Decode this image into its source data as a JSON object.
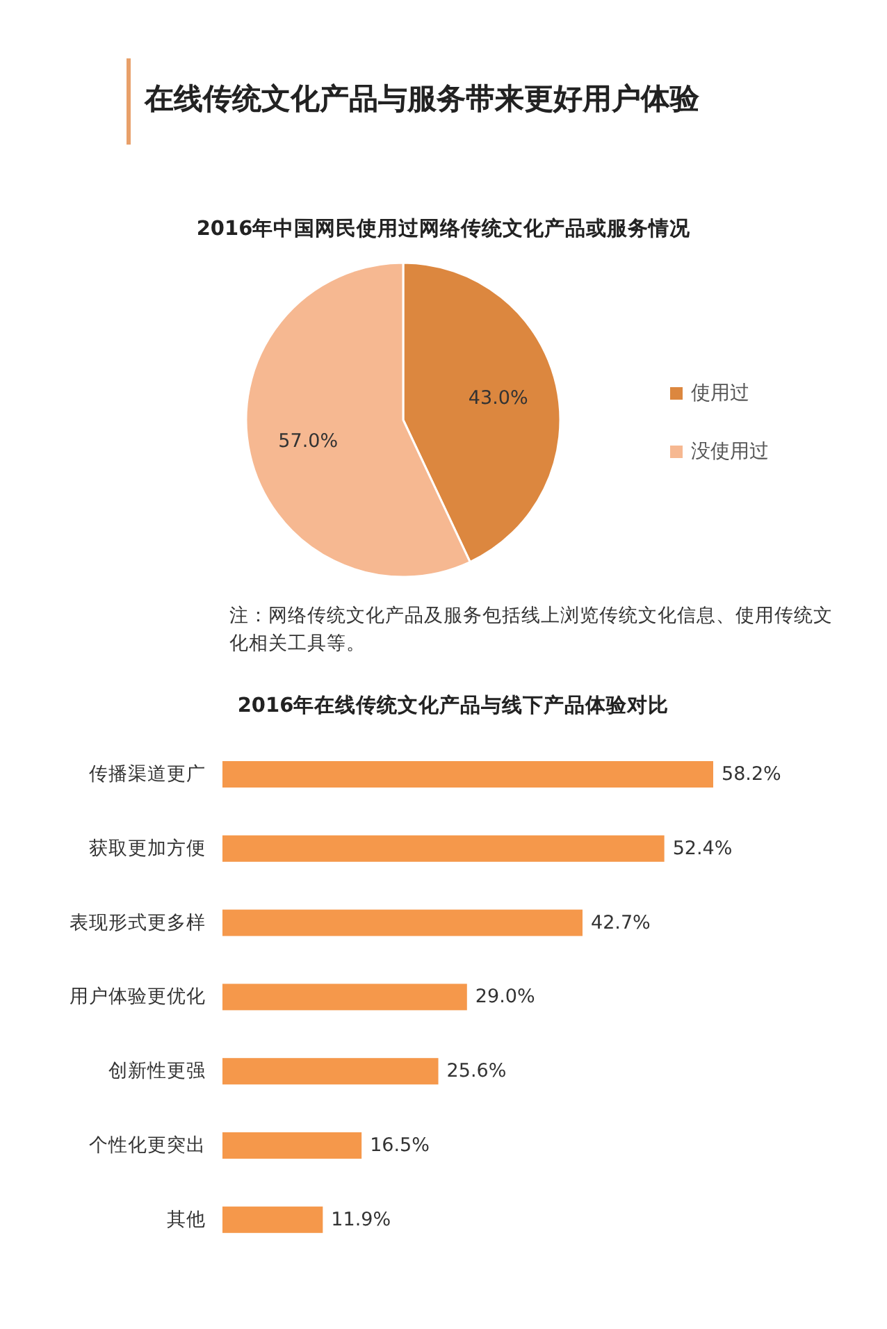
{
  "chart_data": [
    {
      "type": "pie",
      "title": "2016年中国网民使用过网络传统文化产品或服务情况",
      "categories": [
        "使用过",
        "没使用过"
      ],
      "values": [
        43.0,
        57.0
      ],
      "value_labels": [
        "43.0%",
        "57.0%"
      ],
      "colors": [
        "#dc873f",
        "#f6b891"
      ],
      "legend": "right",
      "annotations": [
        "在线传统文化产品与服务带来更好用户体验",
        "注：网络传统文化产品及服务包括线上浏览传统文化信息、使用传统文化相关工具等。"
      ]
    },
    {
      "type": "bar",
      "orientation": "horizontal",
      "title": "2016年在线传统文化产品与线下产品体验对比",
      "categories": [
        "传播渠道更广",
        "获取更加方便",
        "表现形式更多样",
        "用户体验更优化",
        "创新性更强",
        "个性化更突出",
        "其他"
      ],
      "values": [
        58.2,
        52.4,
        42.7,
        29.0,
        25.6,
        16.5,
        11.9
      ],
      "value_labels": [
        "58.2%",
        "52.4%",
        "42.7%",
        "29.0%",
        "25.6%",
        "16.5%",
        "11.9%"
      ],
      "color": "#f5984b"
    }
  ]
}
